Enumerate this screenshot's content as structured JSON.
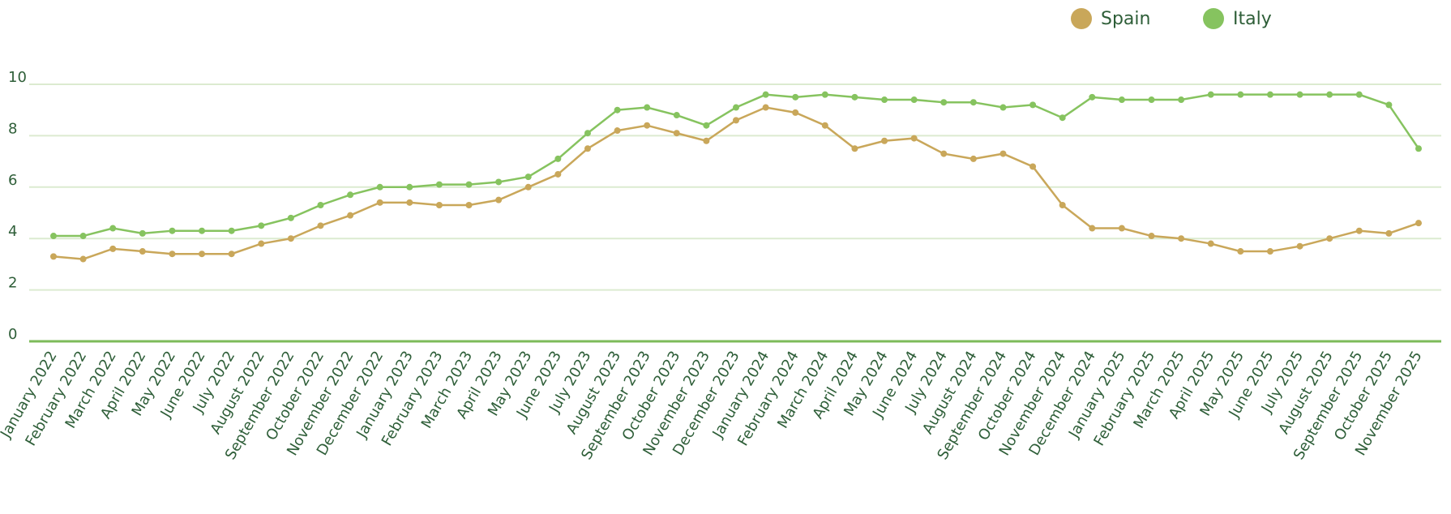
{
  "chart_data": {
    "type": "line",
    "categories": [
      "January 2022",
      "February 2022",
      "March 2022",
      "April 2022",
      "May 2022",
      "June 2022",
      "July 2022",
      "August 2022",
      "September 2022",
      "October 2022",
      "November 2022",
      "December 2022",
      "January 2023",
      "February 2023",
      "March 2023",
      "April 2023",
      "May 2023",
      "June 2023",
      "July 2023",
      "August 2023",
      "September 2023",
      "October 2023",
      "November 2023",
      "December 2023",
      "January 2024",
      "February 2024",
      "March 2024",
      "April 2024",
      "May 2024",
      "June 2024",
      "July 2024",
      "August 2024",
      "September 2024",
      "October 2024",
      "November 2024",
      "December 2024",
      "January 2025",
      "February 2025",
      "March 2025",
      "April 2025",
      "May 2025",
      "June 2025",
      "July 2025",
      "August 2025",
      "September 2025",
      "October 2025",
      "November 2025"
    ],
    "series": [
      {
        "name": "Spain",
        "color": "#c9a75a",
        "values": [
          3.3,
          3.2,
          3.6,
          3.5,
          3.4,
          3.4,
          3.4,
          3.8,
          4.0,
          4.5,
          4.9,
          5.4,
          5.4,
          5.3,
          5.3,
          5.5,
          6.0,
          6.5,
          7.5,
          8.2,
          8.4,
          8.1,
          7.8,
          8.6,
          9.1,
          8.9,
          8.4,
          7.5,
          7.8,
          7.9,
          7.3,
          7.1,
          7.3,
          6.8,
          5.3,
          4.4,
          4.4,
          4.1,
          4.0,
          3.8,
          3.5,
          3.5,
          3.7,
          4.0,
          4.3,
          4.2,
          4.6
        ]
      },
      {
        "name": "Italy",
        "color": "#86c35f",
        "values": [
          4.1,
          4.1,
          4.4,
          4.2,
          4.3,
          4.3,
          4.3,
          4.5,
          4.8,
          5.3,
          5.7,
          6.0,
          6.0,
          6.1,
          6.1,
          6.2,
          6.4,
          7.1,
          8.1,
          9.0,
          9.1,
          8.8,
          8.4,
          9.1,
          9.6,
          9.5,
          9.6,
          9.5,
          9.4,
          9.4,
          9.3,
          9.3,
          9.1,
          9.2,
          8.7,
          9.5,
          9.4,
          9.4,
          9.4,
          9.6,
          9.6,
          9.6,
          9.6,
          9.6,
          9.6,
          9.2,
          7.5
        ]
      }
    ],
    "ylim": [
      0,
      10
    ],
    "yticks": [
      0,
      2,
      4,
      6,
      8,
      10
    ],
    "grid": true,
    "legend": "top-right"
  }
}
